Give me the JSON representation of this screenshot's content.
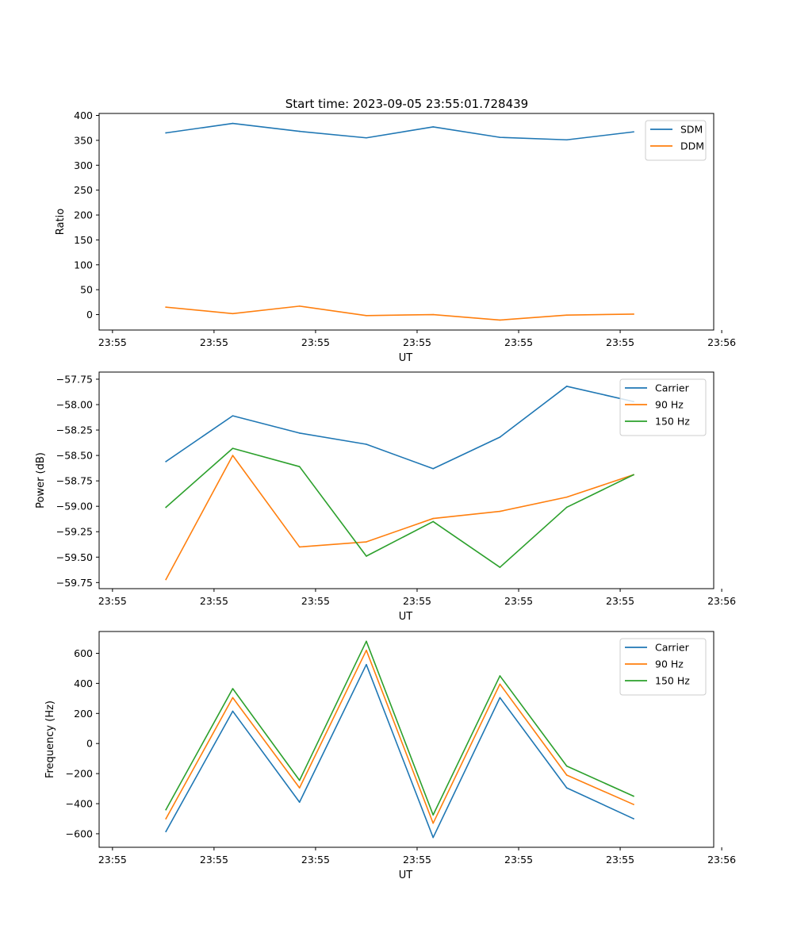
{
  "figure_title": "Start time: 2023-09-05 23:55:01.728439",
  "colors": {
    "blue": "#1f77b4",
    "orange": "#ff7f0e",
    "green": "#2ca02c"
  },
  "chart_data": [
    {
      "type": "line",
      "id": "ratio",
      "title": "Start time: 2023-09-05 23:55:01.728439",
      "xlabel": "UT",
      "ylabel": "Ratio",
      "x": [
        1,
        2,
        3,
        4,
        5,
        6,
        7,
        8
      ],
      "xlim": [
        0,
        9.2
      ],
      "xticks": [
        0.2,
        1.72,
        3.24,
        4.76,
        6.28,
        7.8,
        9.32
      ],
      "xtick_labels": [
        "23:55",
        "23:55",
        "23:55",
        "23:55",
        "23:55",
        "23:55",
        "23:56"
      ],
      "ylim": [
        -31,
        404
      ],
      "yticks": [
        0,
        50,
        100,
        150,
        200,
        250,
        300,
        350,
        400
      ],
      "ytick_labels": [
        "0",
        "50",
        "100",
        "150",
        "200",
        "250",
        "300",
        "350",
        "400"
      ],
      "legend": "upper right",
      "series": [
        {
          "name": "SDM",
          "color": "#1f77b4",
          "values": [
            365,
            384,
            368,
            355,
            377,
            356,
            351,
            367
          ]
        },
        {
          "name": "DDM",
          "color": "#ff7f0e",
          "values": [
            15,
            2,
            17,
            -2,
            0,
            -11,
            -1,
            1
          ]
        }
      ]
    },
    {
      "type": "line",
      "id": "power",
      "xlabel": "UT",
      "ylabel": "Power (dB)",
      "x": [
        1,
        2,
        3,
        4,
        5,
        6,
        7,
        8
      ],
      "xlim": [
        0,
        9.2
      ],
      "xticks": [
        0.2,
        1.72,
        3.24,
        4.76,
        6.28,
        7.8,
        9.32
      ],
      "xtick_labels": [
        "23:55",
        "23:55",
        "23:55",
        "23:55",
        "23:55",
        "23:55",
        "23:56"
      ],
      "ylim": [
        -59.81,
        -57.68
      ],
      "yticks": [
        -59.75,
        -59.5,
        -59.25,
        -59.0,
        -58.75,
        -58.5,
        -58.25,
        -58.0,
        -57.75
      ],
      "ytick_labels": [
        "−59.75",
        "−59.50",
        "−59.25",
        "−59.00",
        "−58.75",
        "−58.50",
        "−58.25",
        "−58.00",
        "−57.75"
      ],
      "legend": "upper right",
      "series": [
        {
          "name": "Carrier",
          "color": "#1f77b4",
          "values": [
            -58.56,
            -58.11,
            -58.28,
            -58.39,
            -58.63,
            -58.32,
            -57.82,
            -57.97
          ]
        },
        {
          "name": "90 Hz",
          "color": "#ff7f0e",
          "values": [
            -59.72,
            -58.5,
            -59.4,
            -59.35,
            -59.12,
            -59.05,
            -58.91,
            -58.69
          ]
        },
        {
          "name": "150 Hz",
          "color": "#2ca02c",
          "values": [
            -59.01,
            -58.43,
            -58.61,
            -59.49,
            -59.15,
            -59.6,
            -59.01,
            -58.69
          ]
        }
      ]
    },
    {
      "type": "line",
      "id": "frequency",
      "xlabel": "UT",
      "ylabel": "Frequency (Hz)",
      "x": [
        1,
        2,
        3,
        4,
        5,
        6,
        7,
        8
      ],
      "xlim": [
        0,
        9.2
      ],
      "xticks": [
        0.2,
        1.72,
        3.24,
        4.76,
        6.28,
        7.8,
        9.32
      ],
      "xtick_labels": [
        "23:55",
        "23:55",
        "23:55",
        "23:55",
        "23:55",
        "23:55",
        "23:56"
      ],
      "ylim": [
        -690,
        745
      ],
      "yticks": [
        -600,
        -400,
        -200,
        0,
        200,
        400,
        600
      ],
      "ytick_labels": [
        "−600",
        "−400",
        "−200",
        "0",
        "200",
        "400",
        "600"
      ],
      "legend": "upper right",
      "series": [
        {
          "name": "Carrier",
          "color": "#1f77b4",
          "values": [
            -585,
            215,
            -390,
            525,
            -625,
            305,
            -295,
            -500
          ]
        },
        {
          "name": "90 Hz",
          "color": "#ff7f0e",
          "values": [
            -500,
            305,
            -295,
            620,
            -530,
            395,
            -210,
            -405
          ]
        },
        {
          "name": "150 Hz",
          "color": "#2ca02c",
          "values": [
            -440,
            365,
            -245,
            680,
            -475,
            450,
            -150,
            -350
          ]
        }
      ]
    }
  ]
}
